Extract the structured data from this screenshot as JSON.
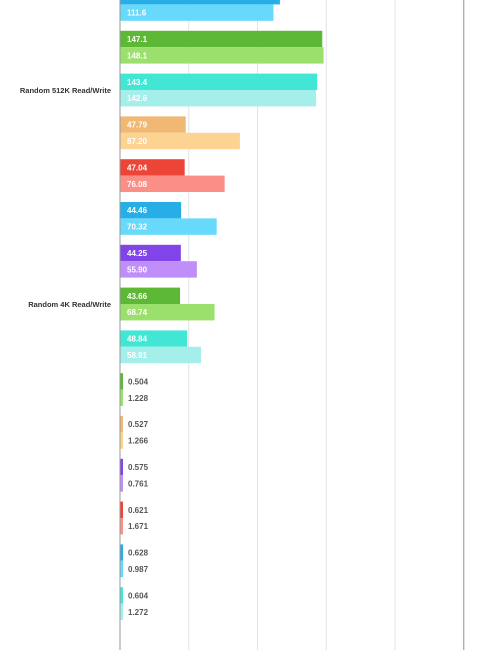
{
  "chart_data": {
    "type": "bar",
    "orientation": "horizontal",
    "title": "",
    "xlabel": "",
    "ylabel": "",
    "xlim": [
      0,
      250
    ],
    "grid": true,
    "legend": "none",
    "groups": [
      {
        "label": "",
        "bars": [
          {
            "value": 116.3,
            "label": "",
            "color": "#27aee6"
          },
          {
            "value": 111.6,
            "label": "111.6",
            "color": "#67d9fb"
          }
        ]
      },
      {
        "label": "",
        "bars": [
          {
            "value": 147.1,
            "label": "147.1",
            "color": "#5db836"
          },
          {
            "value": 148.1,
            "label": "148.1",
            "color": "#9be06c"
          }
        ]
      },
      {
        "label": "Random 512K Read/Write",
        "bars": [
          {
            "value": 143.4,
            "label": "143.4",
            "color": "#42e6d4"
          },
          {
            "value": 142.6,
            "label": "142.6",
            "color": "#a5efea"
          }
        ]
      },
      {
        "label": "",
        "bars": [
          {
            "value": 47.79,
            "label": "47.79",
            "color": "#f0b872"
          },
          {
            "value": 87.2,
            "label": "87.20",
            "color": "#fcd391"
          }
        ]
      },
      {
        "label": "",
        "bars": [
          {
            "value": 47.04,
            "label": "47.04",
            "color": "#ec4437"
          },
          {
            "value": 76.08,
            "label": "76.08",
            "color": "#fb8f87"
          }
        ]
      },
      {
        "label": "",
        "bars": [
          {
            "value": 44.46,
            "label": "44.46",
            "color": "#27aee6"
          },
          {
            "value": 70.32,
            "label": "70.32",
            "color": "#67d9fb"
          }
        ]
      },
      {
        "label": "",
        "bars": [
          {
            "value": 44.25,
            "label": "44.25",
            "color": "#8044e8"
          },
          {
            "value": 55.9,
            "label": "55.90",
            "color": "#bf8ef8"
          }
        ]
      },
      {
        "label": "Random 4K Read/Write",
        "bars": [
          {
            "value": 43.66,
            "label": "43.66",
            "color": "#5db836"
          },
          {
            "value": 68.74,
            "label": "68.74",
            "color": "#9be06c"
          }
        ]
      },
      {
        "label": "",
        "bars": [
          {
            "value": 48.84,
            "label": "48.84",
            "color": "#42e6d4"
          },
          {
            "value": 58.91,
            "label": "58.91",
            "color": "#a5efea"
          }
        ]
      },
      {
        "label": "",
        "bars": [
          {
            "value": 0.504,
            "label": "0.504",
            "color": "#5db836"
          },
          {
            "value": 1.228,
            "label": "1.228",
            "color": "#9be06c"
          }
        ]
      },
      {
        "label": "",
        "bars": [
          {
            "value": 0.527,
            "label": "0.527",
            "color": "#f0b872"
          },
          {
            "value": 1.266,
            "label": "1.266",
            "color": "#fcd391"
          }
        ]
      },
      {
        "label": "",
        "bars": [
          {
            "value": 0.575,
            "label": "0.575",
            "color": "#8044e8"
          },
          {
            "value": 0.761,
            "label": "0.761",
            "color": "#bf8ef8"
          }
        ]
      },
      {
        "label": "",
        "bars": [
          {
            "value": 0.621,
            "label": "0.621",
            "color": "#ec4437"
          },
          {
            "value": 1.671,
            "label": "1.671",
            "color": "#fb8f87"
          }
        ]
      },
      {
        "label": "",
        "bars": [
          {
            "value": 0.628,
            "label": "0.628",
            "color": "#27aee6"
          },
          {
            "value": 0.987,
            "label": "0.987",
            "color": "#67d9fb"
          }
        ]
      },
      {
        "label": "",
        "bars": [
          {
            "value": 0.604,
            "label": "0.604",
            "color": "#42e6d4"
          },
          {
            "value": 1.272,
            "label": "1.272",
            "color": "#a5efea"
          }
        ]
      }
    ]
  }
}
